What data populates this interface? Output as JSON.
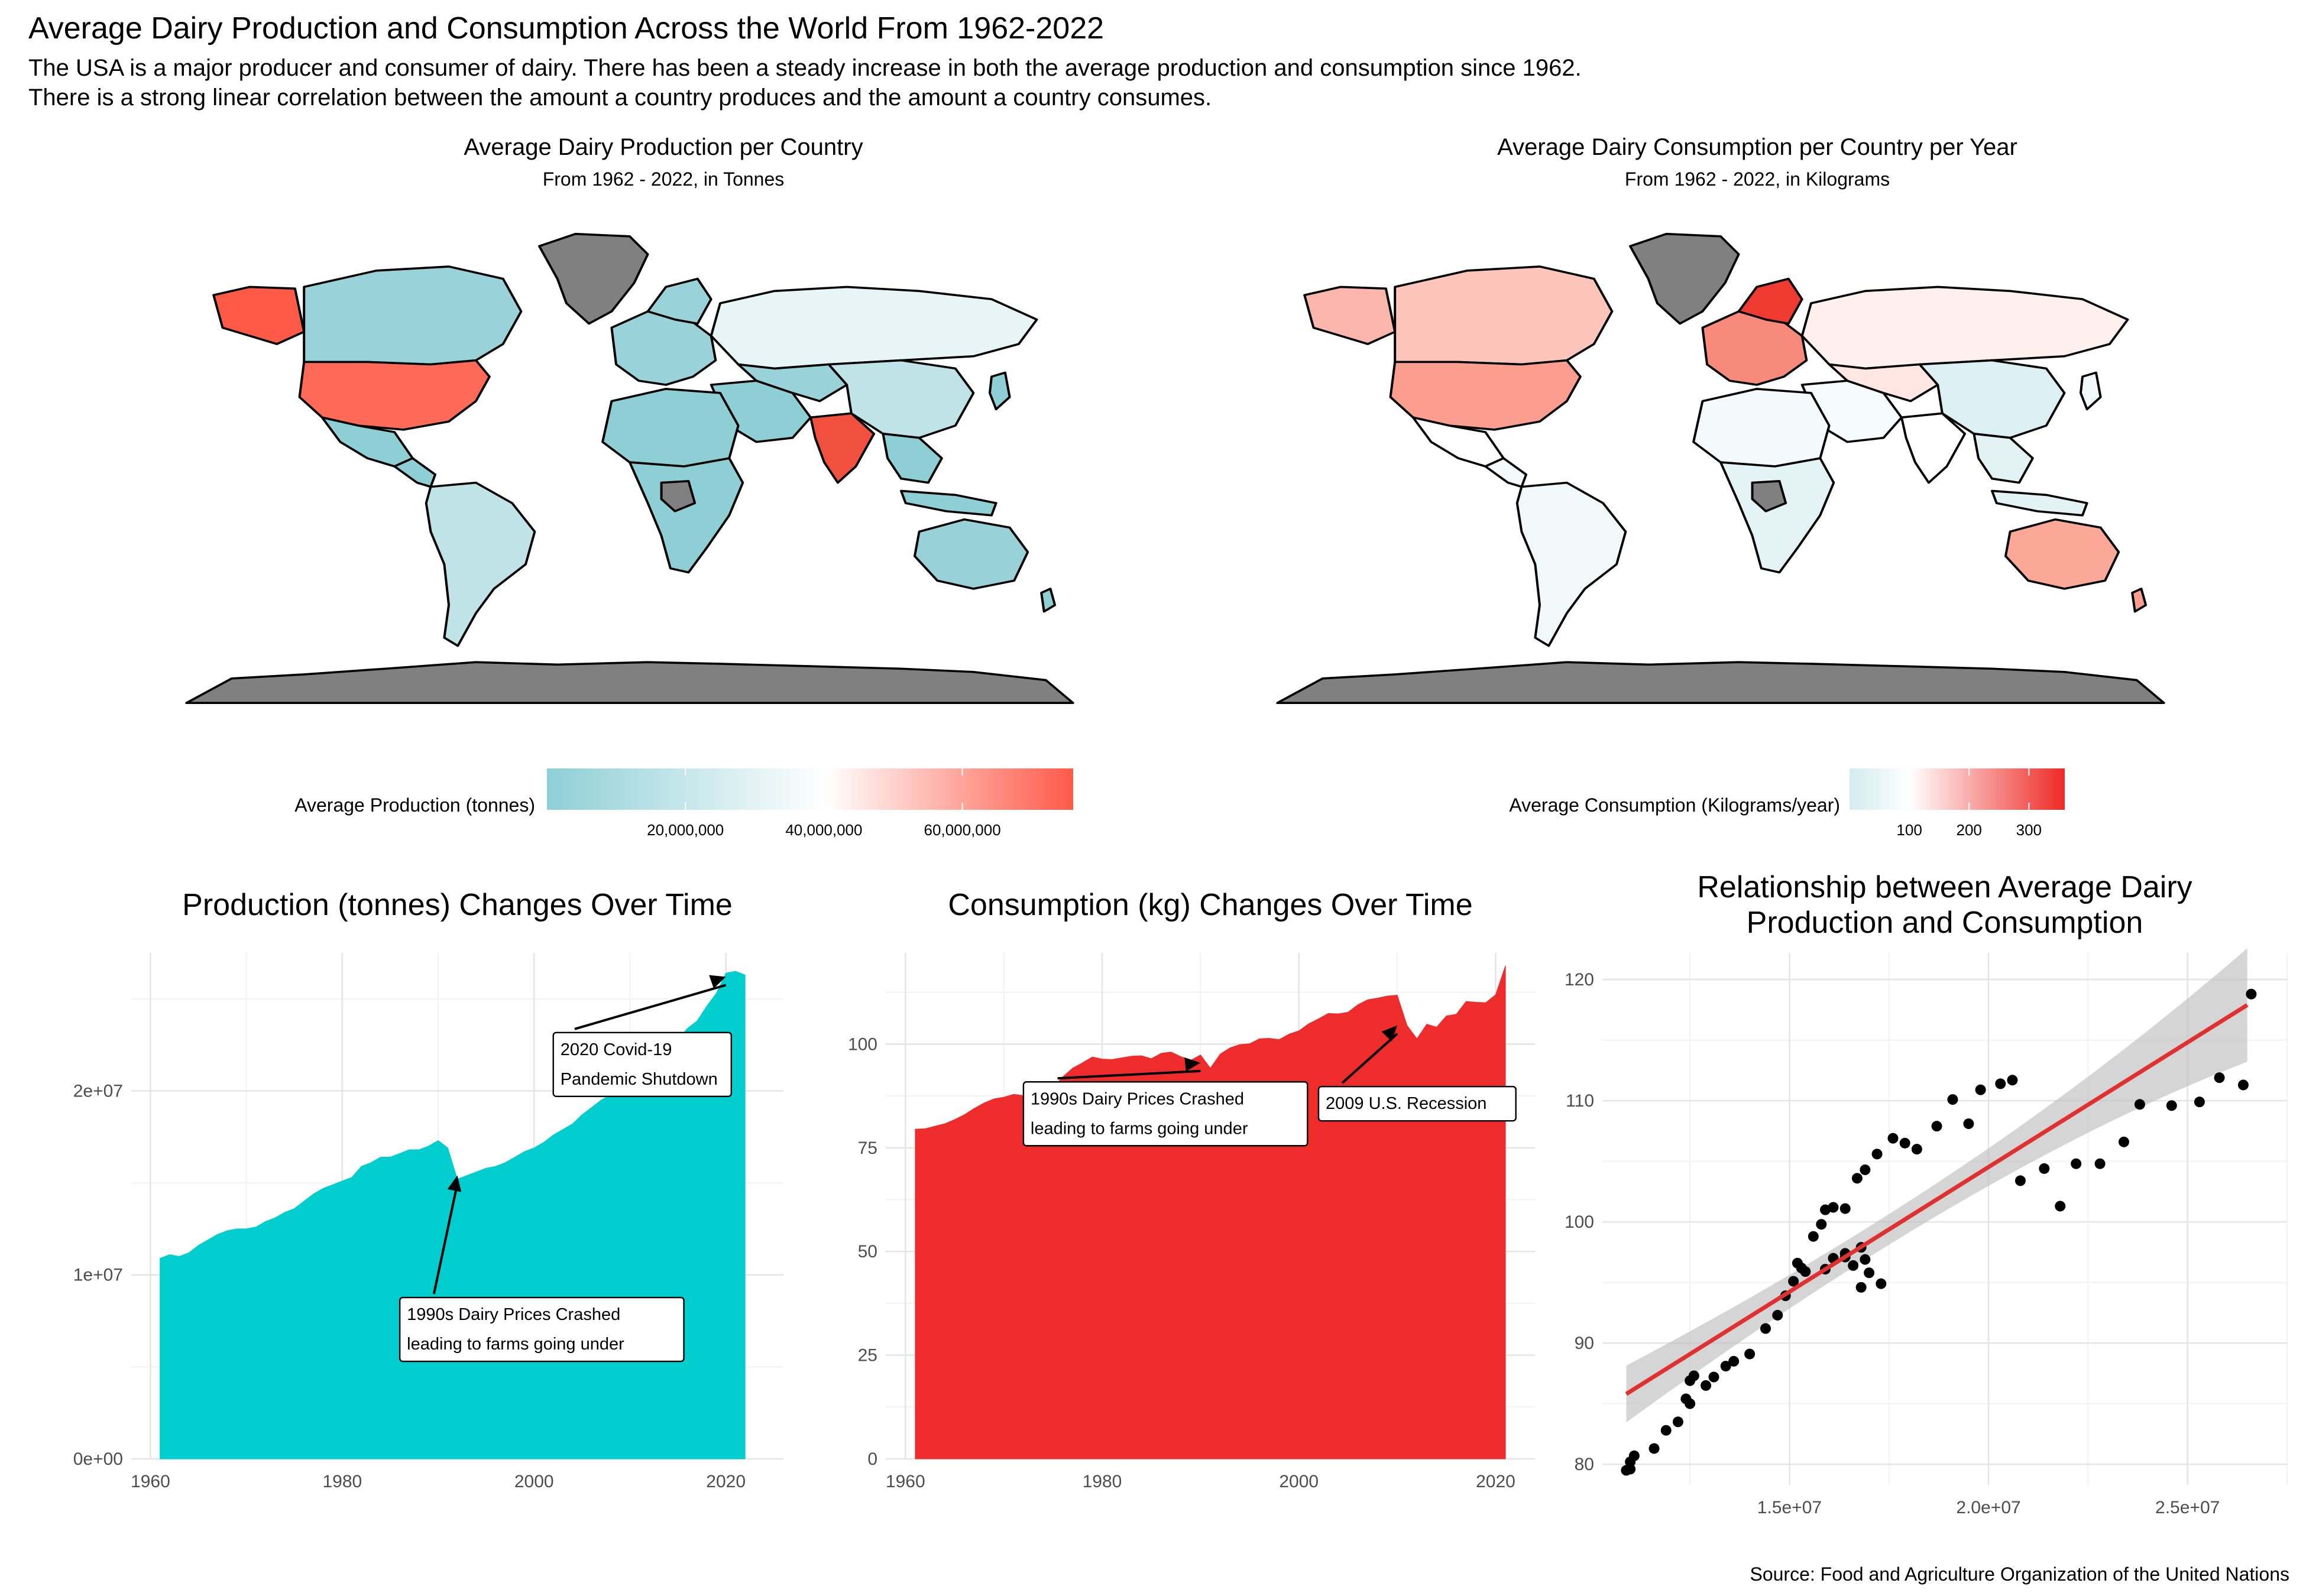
{
  "page": {
    "title": "Average Dairy Production and Consumption Across the World From 1962-2022",
    "subtitle_lines": [
      "The USA is a major producer and consumer of dairy. There has been a steady increase in both the average production and consumption since 1962.",
      "There is a strong linear correlation between the amount a country produces and the amount a country consumes."
    ],
    "caption": "Source: Food and Agriculture Organization of the United Nations"
  },
  "maps": {
    "production": {
      "title": "Average Dairy Production per Country",
      "subtitle": "From 1962 - 2022, in Tonnes",
      "legend_title": "Average Production (tonnes)",
      "legend_ticks": [
        "20,000,000",
        "40,000,000",
        "60,000,000"
      ],
      "legend_tick_values": [
        20000000,
        40000000,
        60000000
      ],
      "legend_range": [
        0,
        76000000
      ],
      "colors": {
        "low": "#8ECFD6",
        "mid": "#FFFFFF",
        "high": "#FF5A48",
        "na": "#808080"
      }
    },
    "consumption": {
      "title": "Average Dairy Consumption per Country per Year",
      "subtitle": "From 1962 - 2022, in Kilograms",
      "legend_title": "Average Consumption (Kilograms/year)",
      "legend_ticks": [
        "100",
        "200",
        "300"
      ],
      "legend_tick_values": [
        100,
        200,
        300
      ],
      "legend_range": [
        0,
        360
      ],
      "colors": {
        "low": "#D2ECEF",
        "mid": "#FFFFFF",
        "high": "#EE2A26",
        "na": "#808080"
      }
    }
  },
  "chart_data": [
    {
      "type": "area",
      "title": "Production (tonnes) Changes Over Time",
      "xlabel": "",
      "ylabel": "",
      "xlim": [
        1958,
        2026
      ],
      "ylim": [
        0,
        27500000
      ],
      "x_ticks": [
        1960,
        1980,
        2000,
        2020
      ],
      "y_ticks": [
        0,
        10000000,
        20000000
      ],
      "y_tick_labels": [
        "0e+00",
        "1e+07",
        "2e+07"
      ],
      "fill": "#00CDCD",
      "grid": true,
      "x": [
        1961,
        1962,
        1963,
        1964,
        1965,
        1966,
        1967,
        1968,
        1969,
        1970,
        1971,
        1972,
        1973,
        1974,
        1975,
        1976,
        1977,
        1978,
        1979,
        1980,
        1981,
        1982,
        1983,
        1984,
        1985,
        1986,
        1987,
        1988,
        1989,
        1990,
        1991,
        1992,
        1993,
        1994,
        1995,
        1996,
        1997,
        1998,
        1999,
        2000,
        2001,
        2002,
        2003,
        2004,
        2005,
        2006,
        2007,
        2008,
        2009,
        2010,
        2011,
        2012,
        2013,
        2014,
        2015,
        2016,
        2017,
        2018,
        2019,
        2020,
        2021,
        2022
      ],
      "y": [
        10900000,
        11100000,
        11000000,
        11200000,
        11600000,
        11900000,
        12200000,
        12400000,
        12500000,
        12500000,
        12600000,
        12900000,
        13100000,
        13400000,
        13600000,
        14000000,
        14400000,
        14700000,
        14900000,
        15100000,
        15300000,
        15900000,
        16100000,
        16400000,
        16400000,
        16600000,
        16800000,
        16800000,
        17000000,
        17300000,
        16900000,
        15200000,
        15400000,
        15600000,
        15800000,
        15900000,
        16100000,
        16400000,
        16700000,
        16900000,
        17200000,
        17600000,
        17900000,
        18200000,
        18700000,
        19100000,
        19500000,
        19800000,
        19900000,
        20300000,
        20800000,
        21400000,
        21800000,
        22200000,
        22800000,
        23400000,
        23800000,
        24600000,
        25300000,
        26400000,
        26500000,
        26300000
      ],
      "annotations": [
        {
          "text_lines": [
            "1990s Dairy Prices Crashed",
            "leading to farms going under"
          ],
          "x": 1986,
          "y": 5300000,
          "arrow_to": [
            1992,
            15400000
          ]
        },
        {
          "text_lines": [
            "2020 Covid-19",
            "Pandemic Shutdown"
          ],
          "x": 2002,
          "y": 19700000,
          "arrow_to": [
            2020,
            26200000
          ]
        }
      ]
    },
    {
      "type": "area",
      "title": "Consumption (kg) Changes Over Time",
      "xlabel": "",
      "ylabel": "",
      "xlim": [
        1958,
        2024
      ],
      "ylim": [
        0,
        122
      ],
      "x_ticks": [
        1960,
        1980,
        2000,
        2020
      ],
      "y_ticks": [
        0,
        25,
        50,
        75,
        100
      ],
      "y_tick_labels": [
        "0",
        "25",
        "50",
        "75",
        "100"
      ],
      "fill": "#EE2C2C",
      "grid": true,
      "x": [
        1961,
        1962,
        1963,
        1964,
        1965,
        1966,
        1967,
        1968,
        1969,
        1970,
        1971,
        1972,
        1973,
        1974,
        1975,
        1976,
        1977,
        1978,
        1979,
        1980,
        1981,
        1982,
        1983,
        1984,
        1985,
        1986,
        1987,
        1988,
        1989,
        1990,
        1991,
        1992,
        1993,
        1994,
        1995,
        1996,
        1997,
        1998,
        1999,
        2000,
        2001,
        2002,
        2003,
        2004,
        2005,
        2006,
        2007,
        2008,
        2009,
        2010,
        2011,
        2012,
        2013,
        2014,
        2015,
        2016,
        2017,
        2018,
        2019,
        2020,
        2021
      ],
      "y": [
        79.5,
        79.6,
        80.2,
        80.8,
        81.8,
        83.0,
        84.5,
        85.8,
        86.8,
        87.2,
        87.9,
        87.6,
        88.5,
        90.0,
        89.5,
        92.1,
        94.2,
        95.5,
        96.9,
        96.4,
        96.3,
        96.7,
        97.1,
        97.2,
        96.5,
        97.8,
        98.1,
        97.0,
        96.1,
        97.4,
        94.2,
        97.6,
        99.1,
        99.9,
        100.1,
        101.3,
        101.4,
        101.1,
        102.4,
        103.2,
        104.9,
        106.1,
        107.4,
        107.3,
        107.7,
        109.5,
        110.7,
        111.1,
        111.6,
        111.8,
        104.5,
        101.3,
        104.8,
        104.1,
        106.8,
        107.2,
        110.3,
        110.1,
        110.0,
        111.9,
        118.9
      ],
      "annotations": [
        {
          "text_lines": [
            "1990s Dairy Prices Crashed",
            "leading to farms going under"
          ],
          "x": 1972,
          "y": 75.5,
          "arrow_to": [
            1990,
            95.5
          ]
        },
        {
          "text_lines": [
            "2009 U.S. Recession"
          ],
          "x": 2002,
          "y": 81.5,
          "arrow_to": [
            2010,
            104.5
          ]
        }
      ]
    },
    {
      "type": "scatter",
      "title": "Relationship between Average Dairy Production and Consumption",
      "title_lines": [
        "Relationship between Average Dairy",
        "Production and Consumption"
      ],
      "xlabel": "",
      "ylabel": "",
      "xlim": [
        10300000,
        27500000
      ],
      "ylim": [
        78.3,
        122.2
      ],
      "x_ticks": [
        15000000,
        20000000,
        25000000
      ],
      "x_tick_labels": [
        "1.5e+07",
        "2.0e+07",
        "2.5e+07"
      ],
      "y_ticks": [
        80,
        90,
        100,
        110,
        120
      ],
      "y_tick_labels": [
        "80",
        "90",
        "100",
        "110",
        "120"
      ],
      "point_color": "#000000",
      "trend": {
        "method": "lm",
        "color": "#E03030",
        "band_color": "#BEBEBE",
        "x": [
          10900000,
          26500000
        ],
        "y": [
          85.8,
          117.9
        ],
        "se_low": [
          2.0,
          2.7
        ],
        "se_high": [
          2.0,
          2.7
        ]
      },
      "x": [
        10900000,
        11000000,
        11100000,
        11000000,
        11600000,
        11900000,
        12200000,
        12400000,
        12500000,
        12500000,
        12600000,
        12900000,
        13100000,
        13400000,
        13600000,
        14000000,
        14400000,
        14700000,
        14900000,
        15100000,
        15300000,
        15900000,
        16100000,
        16400000,
        16400000,
        16600000,
        16800000,
        16800000,
        17000000,
        17300000,
        16900000,
        15200000,
        15400000,
        15600000,
        15800000,
        15900000,
        16100000,
        16400000,
        16700000,
        16900000,
        17200000,
        17600000,
        17900000,
        18200000,
        18700000,
        19100000,
        19500000,
        19800000,
        20300000,
        20600000,
        20800000,
        21400000,
        21800000,
        22200000,
        22800000,
        23400000,
        23800000,
        24600000,
        25300000,
        25800000,
        26400000,
        26600000
      ],
      "y": [
        79.5,
        80.2,
        80.7,
        79.6,
        81.3,
        82.8,
        83.5,
        85.4,
        86.9,
        85.0,
        87.3,
        86.5,
        87.2,
        88.1,
        88.5,
        89.1,
        91.2,
        92.3,
        93.9,
        95.1,
        96.2,
        96.1,
        97.0,
        97.1,
        97.4,
        96.4,
        97.9,
        94.6,
        95.8,
        94.9,
        96.9,
        96.6,
        95.9,
        98.8,
        99.8,
        101.0,
        101.2,
        101.1,
        103.6,
        104.3,
        105.6,
        106.9,
        106.5,
        106.0,
        107.9,
        110.1,
        108.1,
        110.9,
        111.4,
        111.7,
        103.4,
        104.4,
        101.3,
        104.8,
        104.8,
        106.6,
        109.7,
        109.6,
        109.9,
        111.9,
        111.3,
        118.8
      ]
    }
  ]
}
